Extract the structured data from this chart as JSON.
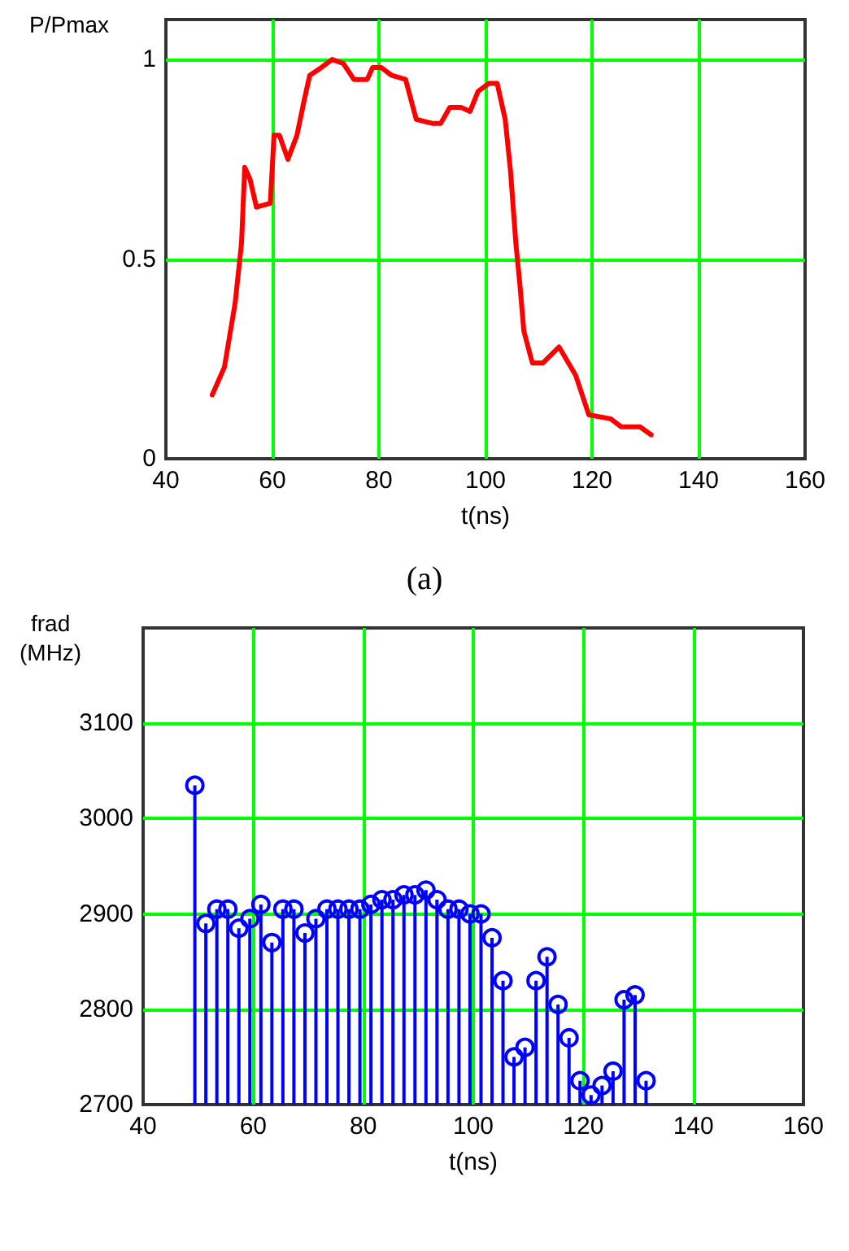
{
  "chart_data": [
    {
      "type": "line",
      "xlabel": "t(ns)",
      "ylabel": "P/Pmax",
      "annotations": [
        "(a)"
      ],
      "xlim": [
        40,
        160
      ],
      "xticks": [
        40,
        60,
        80,
        100,
        120,
        140,
        160
      ],
      "ylim": [
        0,
        1.1
      ],
      "yticks": [
        0,
        0.5,
        1
      ],
      "grid": true,
      "series": [
        {
          "color": "#ff0000",
          "x": [
            48.7,
            51,
            53,
            54.2,
            54.8,
            55.8,
            57,
            59.6,
            60.3,
            61.3,
            62.9,
            64.6,
            66,
            67,
            69.2,
            71.2,
            73.3,
            75.3,
            77.8,
            78.8,
            80.4,
            82.4,
            85,
            87,
            90,
            91.6,
            93.3,
            95.4,
            97.1,
            98.6,
            100.6,
            102.2,
            103.7,
            104.7,
            105.7,
            106.5,
            107.2,
            108.8,
            110.8,
            113.8,
            116.9,
            119.4,
            123.5,
            125.5,
            129,
            131.1
          ],
          "values": [
            0.16,
            0.23,
            0.39,
            0.54,
            0.73,
            0.7,
            0.63,
            0.64,
            0.81,
            0.81,
            0.75,
            0.81,
            0.9,
            0.96,
            0.98,
            1,
            0.99,
            0.95,
            0.95,
            0.98,
            0.98,
            0.96,
            0.95,
            0.85,
            0.84,
            0.84,
            0.88,
            0.88,
            0.87,
            0.92,
            0.94,
            0.94,
            0.85,
            0.72,
            0.54,
            0.43,
            0.32,
            0.24,
            0.24,
            0.28,
            0.21,
            0.11,
            0.1,
            0.08,
            0.08,
            0.06
          ]
        }
      ]
    },
    {
      "type": "lollipop",
      "xlabel": "t(ns)",
      "ylabel": "frad\n(MHz)",
      "xlim": [
        40,
        160
      ],
      "xticks": [
        40,
        60,
        80,
        100,
        120,
        140,
        160
      ],
      "ylim": [
        2700,
        3200
      ],
      "yticks": [
        2700,
        2800,
        2900,
        3000,
        3100
      ],
      "grid": true,
      "marker": "circle",
      "series": [
        {
          "color": "#0000ff",
          "x": [
            49.4,
            51.4,
            53.4,
            55.4,
            57.4,
            59.4,
            61.4,
            63.4,
            65.4,
            67.4,
            69.4,
            71.4,
            73.4,
            75.4,
            77.4,
            79.4,
            81.4,
            83.4,
            85.4,
            87.4,
            89.4,
            91.4,
            93.4,
            95.4,
            97.4,
            99.4,
            101.4,
            103.4,
            105.4,
            107.4,
            109.4,
            111.4,
            113.4,
            115.4,
            117.4,
            119.4,
            121.4,
            123.4,
            125.4,
            127.4,
            129.4,
            131.4
          ],
          "values": [
            3035,
            2890,
            2905,
            2905,
            2885,
            2895,
            2910,
            2870,
            2905,
            2905,
            2880,
            2895,
            2905,
            2905,
            2905,
            2905,
            2910,
            2915,
            2915,
            2920,
            2920,
            2925,
            2915,
            2905,
            2905,
            2900,
            2900,
            2875,
            2830,
            2750,
            2760,
            2830,
            2855,
            2805,
            2770,
            2725,
            2710,
            2720,
            2735,
            2810,
            2815,
            2725
          ]
        }
      ]
    }
  ]
}
